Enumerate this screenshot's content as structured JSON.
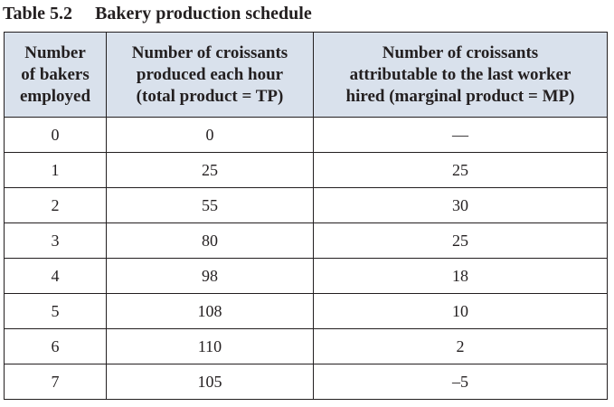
{
  "caption": {
    "number": "Table 5.2",
    "title": "Bakery production schedule"
  },
  "headers": [
    [
      "Number",
      "of bakers",
      "employed"
    ],
    [
      "Number of croissants",
      "produced each hour",
      "(total product = TP)"
    ],
    [
      "Number of croissants",
      "attributable to the last worker",
      "hired (marginal product = MP)"
    ]
  ],
  "rows": [
    {
      "bakers": "0",
      "tp": "0",
      "mp": "—"
    },
    {
      "bakers": "1",
      "tp": "25",
      "mp": "25"
    },
    {
      "bakers": "2",
      "tp": "55",
      "mp": "30"
    },
    {
      "bakers": "3",
      "tp": "80",
      "mp": "25"
    },
    {
      "bakers": "4",
      "tp": "98",
      "mp": "18"
    },
    {
      "bakers": "5",
      "tp": "108",
      "mp": "10"
    },
    {
      "bakers": "6",
      "tp": "110",
      "mp": "2"
    },
    {
      "bakers": "7",
      "tp": "105",
      "mp": "–5"
    }
  ]
}
